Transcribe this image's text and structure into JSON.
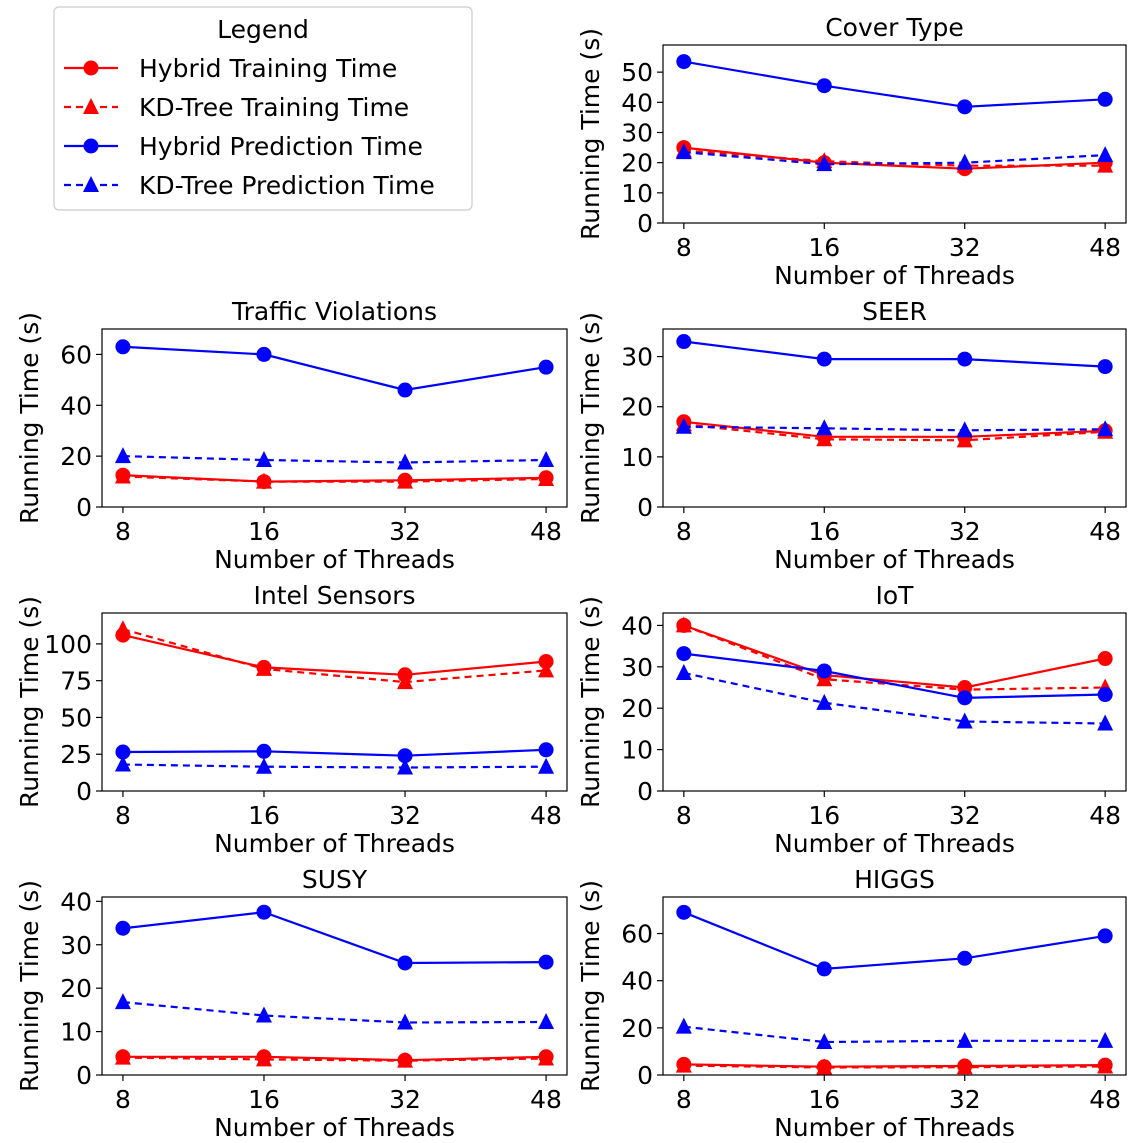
{
  "legend": {
    "title": "Legend",
    "entries": [
      {
        "label": "Hybrid Training Time",
        "color": "#ff0000",
        "marker": "circle",
        "dashed": false
      },
      {
        "label": "KD-Tree Training Time",
        "color": "#ff0000",
        "marker": "triangle",
        "dashed": true
      },
      {
        "label": "Hybrid Prediction Time",
        "color": "#0000ff",
        "marker": "circle",
        "dashed": false
      },
      {
        "label": "KD-Tree Prediction Time",
        "color": "#0000ff",
        "marker": "triangle",
        "dashed": true
      }
    ]
  },
  "chart_data": [
    {
      "type": "line",
      "title": "Cover Type",
      "xlabel": "Number of Threads",
      "ylabel": "Running Time (s)",
      "categories": [
        "8",
        "16",
        "32",
        "48"
      ],
      "ylim": [
        0,
        59
      ],
      "yticks": [
        0,
        10,
        20,
        30,
        40,
        50
      ],
      "series": [
        {
          "name": "Hybrid Training Time",
          "values": [
            25,
            20,
            18,
            20
          ]
        },
        {
          "name": "KD-Tree Training Time",
          "values": [
            24,
            20.5,
            19,
            19
          ]
        },
        {
          "name": "Hybrid Prediction Time",
          "values": [
            53.5,
            45.5,
            38.5,
            41
          ]
        },
        {
          "name": "KD-Tree Prediction Time",
          "values": [
            23.5,
            19.5,
            20,
            22.5
          ]
        }
      ]
    },
    {
      "type": "line",
      "title": "Traffic Violations",
      "xlabel": "Number of Threads",
      "ylabel": "Running Time (s)",
      "categories": [
        "8",
        "16",
        "32",
        "48"
      ],
      "ylim": [
        0,
        70
      ],
      "yticks": [
        0,
        20,
        40,
        60
      ],
      "series": [
        {
          "name": "Hybrid Training Time",
          "values": [
            12.5,
            10,
            10.5,
            11.5
          ]
        },
        {
          "name": "KD-Tree Training Time",
          "values": [
            12,
            10,
            10,
            11
          ]
        },
        {
          "name": "Hybrid Prediction Time",
          "values": [
            63,
            60,
            46,
            55
          ]
        },
        {
          "name": "KD-Tree Prediction Time",
          "values": [
            20,
            18.5,
            17.5,
            18.5
          ]
        }
      ]
    },
    {
      "type": "line",
      "title": "SEER",
      "xlabel": "Number of Threads",
      "ylabel": "Running Time (s)",
      "categories": [
        "8",
        "16",
        "32",
        "48"
      ],
      "ylim": [
        0,
        35.5
      ],
      "yticks": [
        0,
        10,
        20,
        30
      ],
      "series": [
        {
          "name": "Hybrid Training Time",
          "values": [
            17,
            14,
            14,
            15.2
          ]
        },
        {
          "name": "KD-Tree Training Time",
          "values": [
            16.5,
            13.5,
            13.3,
            15
          ]
        },
        {
          "name": "Hybrid Prediction Time",
          "values": [
            33,
            29.5,
            29.5,
            28
          ]
        },
        {
          "name": "KD-Tree Prediction Time",
          "values": [
            16,
            15.7,
            15.3,
            15.5
          ]
        }
      ]
    },
    {
      "type": "line",
      "title": "Intel Sensors",
      "xlabel": "Number of Threads",
      "ylabel": "Running Time (s)",
      "categories": [
        "8",
        "16",
        "32",
        "48"
      ],
      "ylim": [
        0,
        121
      ],
      "yticks": [
        0,
        25,
        50,
        75,
        100
      ],
      "series": [
        {
          "name": "Hybrid Training Time",
          "values": [
            106,
            84,
            79,
            88
          ]
        },
        {
          "name": "KD-Tree Training Time",
          "values": [
            110,
            83,
            74,
            82
          ]
        },
        {
          "name": "Hybrid Prediction Time",
          "values": [
            26.5,
            27,
            24,
            28
          ]
        },
        {
          "name": "KD-Tree Prediction Time",
          "values": [
            18,
            16.5,
            16,
            16.5
          ]
        }
      ]
    },
    {
      "type": "line",
      "title": "IoT",
      "xlabel": "Number of Threads",
      "ylabel": "Running Time (s)",
      "categories": [
        "8",
        "16",
        "32",
        "48"
      ],
      "ylim": [
        0,
        43
      ],
      "yticks": [
        0,
        10,
        20,
        30,
        40
      ],
      "series": [
        {
          "name": "Hybrid Training Time",
          "values": [
            40,
            28,
            25,
            32
          ]
        },
        {
          "name": "KD-Tree Training Time",
          "values": [
            40,
            27,
            24.5,
            25
          ]
        },
        {
          "name": "Hybrid Prediction Time",
          "values": [
            33.2,
            29,
            22.5,
            23.3
          ]
        },
        {
          "name": "KD-Tree Prediction Time",
          "values": [
            28.5,
            21.3,
            16.8,
            16.3
          ]
        }
      ]
    },
    {
      "type": "line",
      "title": "SUSY",
      "xlabel": "Number of Threads",
      "ylabel": "Running Time (s)",
      "categories": [
        "8",
        "16",
        "32",
        "48"
      ],
      "ylim": [
        0,
        41
      ],
      "yticks": [
        0,
        10,
        20,
        30,
        40
      ],
      "series": [
        {
          "name": "Hybrid Training Time",
          "values": [
            4.2,
            4.2,
            3.4,
            4.2
          ]
        },
        {
          "name": "KD-Tree Training Time",
          "values": [
            4,
            3.6,
            3.3,
            3.8
          ]
        },
        {
          "name": "Hybrid Prediction Time",
          "values": [
            33.8,
            37.5,
            25.8,
            26
          ]
        },
        {
          "name": "KD-Tree Prediction Time",
          "values": [
            16.8,
            13.7,
            12.1,
            12.2
          ]
        }
      ]
    },
    {
      "type": "line",
      "title": "HIGGS",
      "xlabel": "Number of Threads",
      "ylabel": "Running Time (s)",
      "categories": [
        "8",
        "16",
        "32",
        "48"
      ],
      "ylim": [
        0,
        75.5
      ],
      "yticks": [
        0,
        20,
        40,
        60
      ],
      "series": [
        {
          "name": "Hybrid Training Time",
          "values": [
            4.5,
            3.5,
            3.8,
            4.2
          ]
        },
        {
          "name": "KD-Tree Training Time",
          "values": [
            4,
            3.2,
            3.3,
            3.6
          ]
        },
        {
          "name": "Hybrid Prediction Time",
          "values": [
            69,
            45,
            49.5,
            59
          ]
        },
        {
          "name": "KD-Tree Prediction Time",
          "values": [
            20.5,
            14,
            14.5,
            14.5
          ]
        }
      ]
    }
  ]
}
